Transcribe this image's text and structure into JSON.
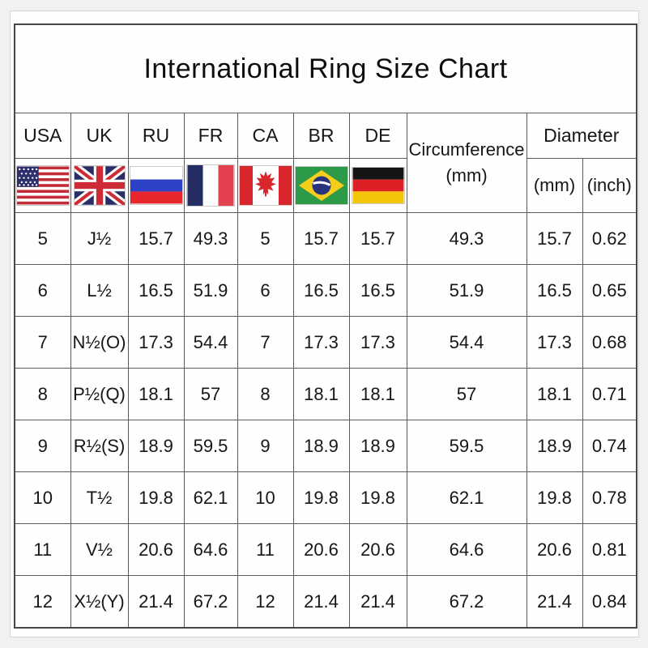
{
  "page": {
    "title": "International Ring Size Chart"
  },
  "header": {
    "countries": [
      {
        "label": "USA",
        "flag": "usa-flag-icon"
      },
      {
        "label": "UK",
        "flag": "uk-flag-icon"
      },
      {
        "label": "RU",
        "flag": "russia-flag-icon"
      },
      {
        "label": "FR",
        "flag": "france-flag-icon"
      },
      {
        "label": "CA",
        "flag": "canada-flag-icon"
      },
      {
        "label": "BR",
        "flag": "brazil-flag-icon"
      },
      {
        "label": "DE",
        "flag": "germany-flag-icon"
      }
    ],
    "circumference_line1": "Circumference",
    "circumference_line2": "(mm)",
    "diameter_label": "Diameter",
    "diameter_mm_label": "(mm)",
    "diameter_inch_label": "(inch)"
  },
  "chart_data": {
    "type": "table",
    "title": "International Ring Size Chart",
    "columns": [
      "USA",
      "UK",
      "RU",
      "FR",
      "CA",
      "BR",
      "DE",
      "Circumference (mm)",
      "Diameter (mm)",
      "Diameter (inch)"
    ],
    "rows": [
      [
        "5",
        "J½",
        "15.7",
        "49.3",
        "5",
        "15.7",
        "15.7",
        "49.3",
        "15.7",
        "0.62"
      ],
      [
        "6",
        "L½",
        "16.5",
        "51.9",
        "6",
        "16.5",
        "16.5",
        "51.9",
        "16.5",
        "0.65"
      ],
      [
        "7",
        "N½(O)",
        "17.3",
        "54.4",
        "7",
        "17.3",
        "17.3",
        "54.4",
        "17.3",
        "0.68"
      ],
      [
        "8",
        "P½(Q)",
        "18.1",
        "57",
        "8",
        "18.1",
        "18.1",
        "57",
        "18.1",
        "0.71"
      ],
      [
        "9",
        "R½(S)",
        "18.9",
        "59.5",
        "9",
        "18.9",
        "18.9",
        "59.5",
        "18.9",
        "0.74"
      ],
      [
        "10",
        "T½",
        "19.8",
        "62.1",
        "10",
        "19.8",
        "19.8",
        "62.1",
        "19.8",
        "0.78"
      ],
      [
        "11",
        "V½",
        "20.6",
        "64.6",
        "11",
        "20.6",
        "20.6",
        "64.6",
        "20.6",
        "0.81"
      ],
      [
        "12",
        "X½(Y)",
        "21.4",
        "67.2",
        "12",
        "21.4",
        "21.4",
        "67.2",
        "21.4",
        "0.84"
      ]
    ]
  },
  "colors": {
    "page_background": "#f2f1ef",
    "table_border": "#474747",
    "usa_red": "#c22b38",
    "usa_blue": "#2c2f6b",
    "uk_blue": "#272f66",
    "uk_red": "#ce2b37",
    "russia_blue": "#2e42c8",
    "russia_red": "#e8262d",
    "france_blue": "#232c63",
    "france_red": "#e34050",
    "canada_red": "#d8262c",
    "brazil_green": "#2d9a47",
    "brazil_yellow": "#f5ce1b",
    "brazil_blue": "#28337e",
    "germany_black": "#151515",
    "germany_red": "#dd1f26",
    "germany_gold": "#f3c50a"
  }
}
